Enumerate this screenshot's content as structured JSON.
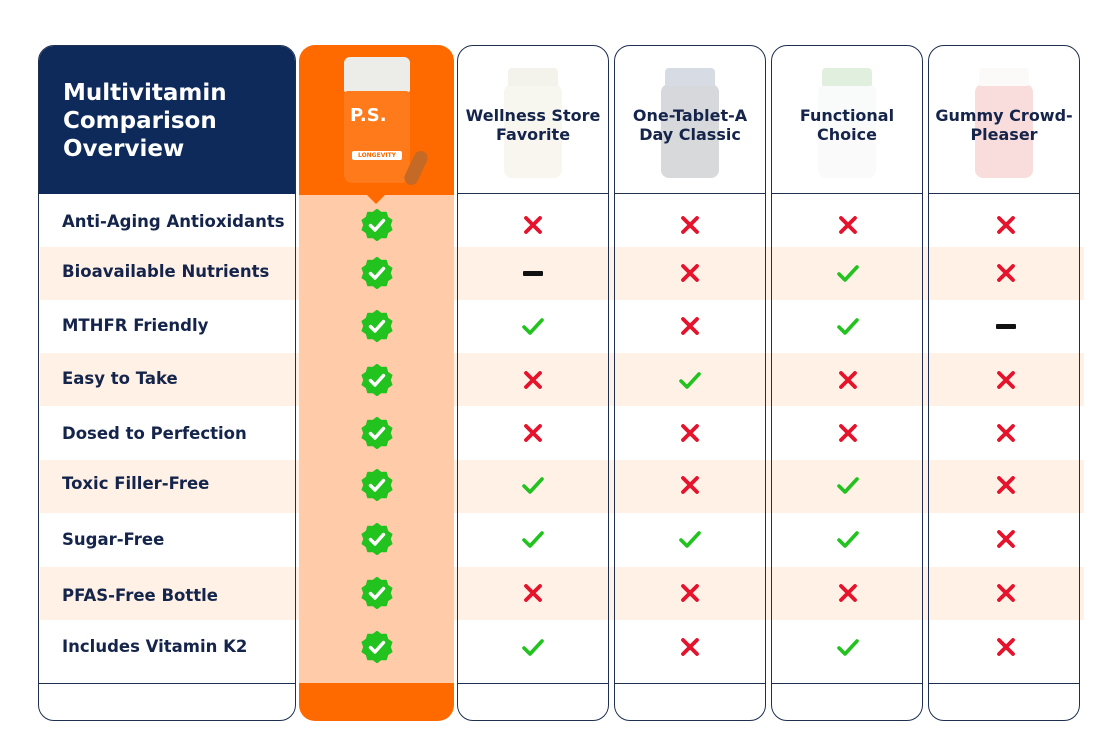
{
  "title": "Multivitamin Comparison Overview",
  "features": [
    "Anti-Aging Antioxidants",
    "Bioavailable Nutrients",
    "MTHFR Friendly",
    "Easy to Take",
    "Dosed to Perfection",
    "Toxic Filler-Free",
    "Sugar-Free",
    "PFAS-Free Bottle",
    "Includes Vitamin K2"
  ],
  "featured_product": {
    "brand_text": "P.S.",
    "label_text": "LONGEVITY",
    "values": [
      "check",
      "check",
      "check",
      "check",
      "check",
      "check",
      "check",
      "check",
      "check"
    ]
  },
  "competitors": [
    {
      "name": "Wellness Store Favorite",
      "values": [
        "cross",
        "dash",
        "check",
        "cross",
        "cross",
        "check",
        "check",
        "cross",
        "check"
      ]
    },
    {
      "name": "One-Tablet-A Day Classic",
      "values": [
        "cross",
        "cross",
        "cross",
        "check",
        "cross",
        "cross",
        "check",
        "cross",
        "cross"
      ]
    },
    {
      "name": "Functional Choice",
      "values": [
        "cross",
        "check",
        "check",
        "cross",
        "cross",
        "check",
        "check",
        "cross",
        "check"
      ]
    },
    {
      "name": "Gummy Crowd-Pleaser",
      "values": [
        "cross",
        "cross",
        "dash",
        "cross",
        "cross",
        "cross",
        "cross",
        "cross",
        "cross"
      ]
    }
  ],
  "colors": {
    "navy": "#0d2a5b",
    "orange": "#ff6a00",
    "check_green": "#22c21f",
    "cross_red": "#e5132b",
    "dash_black": "#111111",
    "stripe": "#fff1e6"
  }
}
